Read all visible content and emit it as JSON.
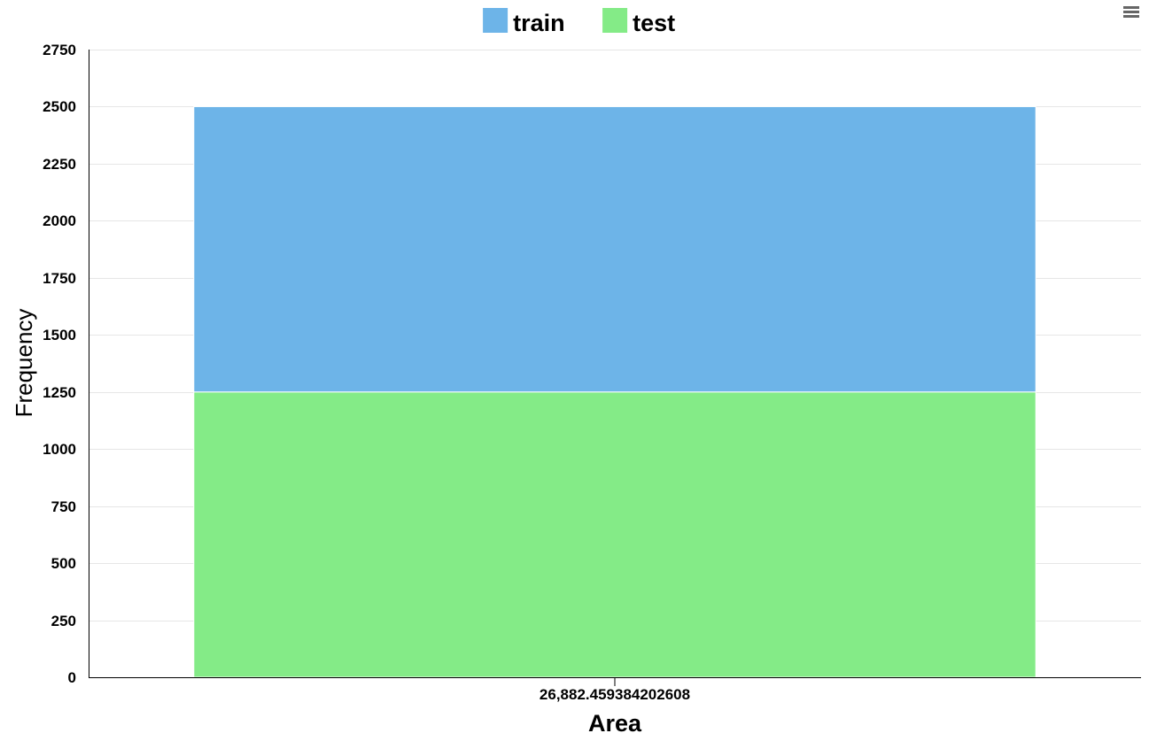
{
  "chart_data": {
    "type": "bar",
    "stacked": true,
    "categories": [
      "26,882.459384202608"
    ],
    "series": [
      {
        "name": "train",
        "values": [
          1250
        ],
        "color": "#6db4e8"
      },
      {
        "name": "test",
        "values": [
          1250
        ],
        "color": "#84eb87"
      }
    ],
    "xlabel": "Area",
    "ylabel": "Frequency",
    "ylim": [
      0,
      2750
    ],
    "yticks": [
      "0",
      "250",
      "500",
      "750",
      "1000",
      "1250",
      "1500",
      "1750",
      "2000",
      "2250",
      "2500",
      "2750"
    ],
    "grid": true,
    "legend": "top-center"
  },
  "menu_icon": "hamburger-menu-icon"
}
